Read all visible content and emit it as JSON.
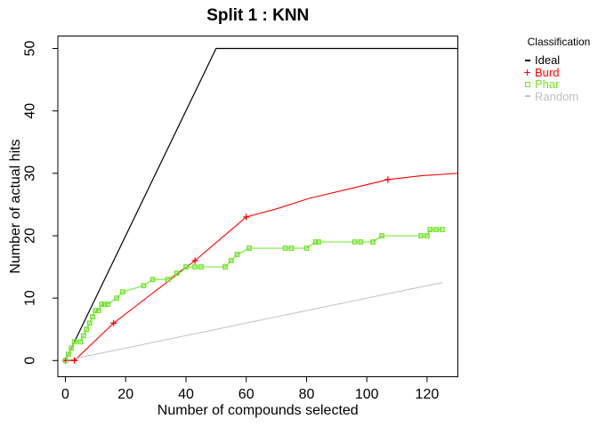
{
  "chart_data": {
    "type": "line",
    "title": "Split 1 : KNN",
    "xlabel": "Number of compounds selected",
    "ylabel": "Number of actual hits",
    "xticks": [
      0,
      20,
      40,
      60,
      80,
      100,
      120
    ],
    "yticks": [
      0,
      10,
      20,
      30,
      40,
      50
    ],
    "xlim": [
      -2.5,
      130.2
    ],
    "ylim": [
      -2.6,
      52
    ],
    "grid": false,
    "background_color": "#FFFFFF",
    "frame_color": "#000000",
    "legend": {
      "title": "Classification",
      "position": "right-outside",
      "entries": [
        {
          "label": "Ideal",
          "color": "#000000",
          "marker": "line"
        },
        {
          "label": "Burd",
          "color": "#FF0000",
          "marker": "plus"
        },
        {
          "label": "Phar",
          "color": "#70E42C",
          "marker": "square-open"
        },
        {
          "label": "Random",
          "color": "#C0C0C0",
          "marker": "line"
        }
      ]
    },
    "series": [
      {
        "name": "Ideal",
        "color": "#000000",
        "marker": "none",
        "line_width": 1.2,
        "points": [
          [
            0,
            0
          ],
          [
            50,
            50
          ],
          [
            130.2,
            50
          ]
        ]
      },
      {
        "name": "Burd",
        "color": "#FF0000",
        "marker": "plus",
        "line_width": 1.1,
        "points": [
          [
            0,
            0
          ],
          [
            3,
            0
          ],
          [
            16,
            6
          ],
          [
            43,
            16
          ],
          [
            60,
            23
          ],
          [
            70,
            24.3
          ],
          [
            81,
            26
          ],
          [
            95,
            27.6
          ],
          [
            107,
            29
          ],
          [
            118,
            29.6
          ],
          [
            130,
            30
          ]
        ],
        "marker_points": [
          [
            0,
            0
          ],
          [
            3,
            0
          ],
          [
            16,
            6
          ],
          [
            43,
            16
          ],
          [
            60,
            23
          ],
          [
            107,
            29
          ]
        ]
      },
      {
        "name": "Phar",
        "color": "#70E42C",
        "marker": "square-open",
        "line_width": 1.1,
        "points": [
          [
            0,
            0
          ],
          [
            1,
            1
          ],
          [
            2,
            2
          ],
          [
            3,
            3
          ],
          [
            5,
            3
          ],
          [
            6,
            4
          ],
          [
            7,
            5
          ],
          [
            8,
            6
          ],
          [
            9,
            7
          ],
          [
            10,
            8
          ],
          [
            11,
            8
          ],
          [
            12,
            9
          ],
          [
            13,
            9
          ],
          [
            14,
            9
          ],
          [
            17,
            10
          ],
          [
            19,
            11
          ],
          [
            26,
            12
          ],
          [
            29,
            13
          ],
          [
            34,
            13
          ],
          [
            37,
            14
          ],
          [
            40,
            15
          ],
          [
            43,
            15
          ],
          [
            45,
            15
          ],
          [
            53,
            15
          ],
          [
            55,
            16
          ],
          [
            57,
            17
          ],
          [
            61,
            18
          ],
          [
            73,
            18
          ],
          [
            75,
            18
          ],
          [
            80,
            18
          ],
          [
            83,
            19
          ],
          [
            84,
            19
          ],
          [
            96,
            19
          ],
          [
            98,
            19
          ],
          [
            102,
            19
          ],
          [
            105,
            20
          ],
          [
            118,
            20
          ],
          [
            120,
            20
          ],
          [
            121,
            21
          ],
          [
            123,
            21
          ],
          [
            125,
            21
          ]
        ]
      },
      {
        "name": "Random",
        "color": "#C0C0C0",
        "marker": "none",
        "line_width": 1,
        "points": [
          [
            0,
            0
          ],
          [
            125,
            12.5
          ]
        ]
      }
    ]
  }
}
